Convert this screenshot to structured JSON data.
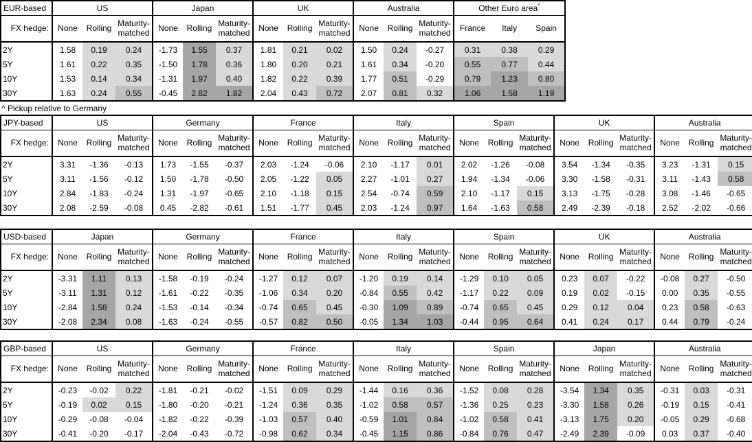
{
  "page": {
    "footnote": "^ Pickup relative to Germany"
  },
  "fx_hedge_label": "FX hedge:",
  "maturities": [
    "2Y",
    "5Y",
    "10Y",
    "30Y"
  ],
  "default_subheaders": [
    "None",
    "Rolling",
    "Maturity-matched"
  ],
  "shading": {
    "light": "#d9d9d9",
    "medium": "#bfbfbf",
    "dark": "#a6a6a6",
    "medium_threshold": 0.5,
    "dark_threshold": 1.0
  },
  "tables": [
    {
      "base": "EUR-based",
      "groups": [
        {
          "name": "US",
          "rows": [
            [
              "1.58",
              "0.19",
              "0.24"
            ],
            [
              "1.61",
              "0.22",
              "0.35"
            ],
            [
              "1.53",
              "0.14",
              "0.34"
            ],
            [
              "1.63",
              "0.24",
              "0.55"
            ]
          ]
        },
        {
          "name": "Japan",
          "rows": [
            [
              "-1.73",
              "1.55",
              "0.37"
            ],
            [
              "-1.50",
              "1.78",
              "0.36"
            ],
            [
              "-1.31",
              "1.97",
              "0.40"
            ],
            [
              "-0.45",
              "2.82",
              "1.82"
            ]
          ]
        },
        {
          "name": "UK",
          "rows": [
            [
              "1.81",
              "0.21",
              "0.02"
            ],
            [
              "1.80",
              "0.20",
              "0.21"
            ],
            [
              "1.82",
              "0.22",
              "0.39"
            ],
            [
              "2.04",
              "0.43",
              "0.72"
            ]
          ]
        },
        {
          "name": "Australia",
          "rows": [
            [
              "1.50",
              "0.24",
              "-0.27"
            ],
            [
              "1.61",
              "0.34",
              "-0.20"
            ],
            [
              "1.77",
              "0.51",
              "-0.29"
            ],
            [
              "2.07",
              "0.81",
              "0.32"
            ]
          ]
        },
        {
          "name": "Other Euro area",
          "sup": "^",
          "shade_all": true,
          "subheaders": [
            "France",
            "Italy",
            "Spain"
          ],
          "rows": [
            [
              "0.31",
              "0.38",
              "0.29"
            ],
            [
              "0.55",
              "0.77",
              "0.44"
            ],
            [
              "0.79",
              "1.23",
              "0.80"
            ],
            [
              "1.06",
              "1.58",
              "1.19"
            ]
          ]
        }
      ]
    },
    {
      "base": "JPY-based",
      "groups": [
        {
          "name": "US",
          "rows": [
            [
              "3.31",
              "-1.36",
              "-0.13"
            ],
            [
              "3.11",
              "-1.56",
              "-0.12"
            ],
            [
              "2.84",
              "-1.83",
              "-0.24"
            ],
            [
              "2.08",
              "-2.59",
              "-0.08"
            ]
          ]
        },
        {
          "name": "Germany",
          "rows": [
            [
              "1.73",
              "-1.55",
              "-0.37"
            ],
            [
              "1.50",
              "-1.78",
              "-0.50"
            ],
            [
              "1.31",
              "-1.97",
              "-0.65"
            ],
            [
              "0.45",
              "-2.82",
              "-0.61"
            ]
          ]
        },
        {
          "name": "France",
          "rows": [
            [
              "2.03",
              "-1.24",
              "-0.06"
            ],
            [
              "2.05",
              "-1.22",
              "0.05"
            ],
            [
              "2.10",
              "-1.18",
              "0.15"
            ],
            [
              "1.51",
              "-1.77",
              "0.45"
            ]
          ]
        },
        {
          "name": "Italy",
          "rows": [
            [
              "2.10",
              "-1.17",
              "0.01"
            ],
            [
              "2.27",
              "-1.01",
              "0.27"
            ],
            [
              "2.54",
              "-0.74",
              "0.59"
            ],
            [
              "2.03",
              "-1.24",
              "0.97"
            ]
          ]
        },
        {
          "name": "Spain",
          "rows": [
            [
              "2.02",
              "-1.26",
              "-0.08"
            ],
            [
              "1.94",
              "-1.34",
              "-0.06"
            ],
            [
              "2.10",
              "-1.17",
              "0.15"
            ],
            [
              "1.64",
              "-1.63",
              "0.58"
            ]
          ]
        },
        {
          "name": "UK",
          "rows": [
            [
              "3.54",
              "-1.34",
              "-0.35"
            ],
            [
              "3.30",
              "-1.58",
              "-0.31"
            ],
            [
              "3.13",
              "-1.75",
              "-0.28"
            ],
            [
              "2.49",
              "-2.39",
              "-0.18"
            ]
          ]
        },
        {
          "name": "Australia",
          "rows": [
            [
              "3.23",
              "-1.31",
              "0.15"
            ],
            [
              "3.11",
              "-1.43",
              "0.58"
            ],
            [
              "3.08",
              "-1.46",
              "-0.65"
            ],
            [
              "2.52",
              "-2.02",
              "-0.66"
            ]
          ]
        }
      ]
    },
    {
      "base": "USD-based",
      "groups": [
        {
          "name": "Japan",
          "rows": [
            [
              "-3.31",
              "1.11",
              "0.13"
            ],
            [
              "-3.11",
              "1.31",
              "0.12"
            ],
            [
              "-2.84",
              "1.58",
              "0.24"
            ],
            [
              "-2.08",
              "2.34",
              "0.08"
            ]
          ]
        },
        {
          "name": "Germany",
          "rows": [
            [
              "-1.58",
              "-0.19",
              "-0.24"
            ],
            [
              "-1.61",
              "-0.22",
              "-0.35"
            ],
            [
              "-1.53",
              "-0.14",
              "-0.34"
            ],
            [
              "-1.63",
              "-0.24",
              "-0.55"
            ]
          ]
        },
        {
          "name": "France",
          "rows": [
            [
              "-1.27",
              "0.12",
              "0.07"
            ],
            [
              "-1.06",
              "0.34",
              "0.20"
            ],
            [
              "-0.74",
              "0.65",
              "0.45"
            ],
            [
              "-0.57",
              "0.82",
              "0.50"
            ]
          ]
        },
        {
          "name": "Italy",
          "rows": [
            [
              "-1.20",
              "0.19",
              "0.14"
            ],
            [
              "-0.84",
              "0.55",
              "0.42"
            ],
            [
              "-0.30",
              "1.09",
              "0.89"
            ],
            [
              "-0.05",
              "1.34",
              "1.03"
            ]
          ]
        },
        {
          "name": "Spain",
          "rows": [
            [
              "-1.29",
              "0.10",
              "0.05"
            ],
            [
              "-1.17",
              "0.22",
              "0.09"
            ],
            [
              "-0.74",
              "0.65",
              "0.45"
            ],
            [
              "-0.44",
              "0.95",
              "0.64"
            ]
          ]
        },
        {
          "name": "UK",
          "rows": [
            [
              "0.23",
              "0.07",
              "-0.22"
            ],
            [
              "0.19",
              "0.02",
              "-0.15"
            ],
            [
              "0.29",
              "0.12",
              "0.04"
            ],
            [
              "0.41",
              "0.24",
              "0.17"
            ]
          ]
        },
        {
          "name": "Australia",
          "rows": [
            [
              "-0.08",
              "0.27",
              "-0.50"
            ],
            [
              "0.00",
              "0.35",
              "-0.55"
            ],
            [
              "0.23",
              "0.58",
              "-0.63"
            ],
            [
              "0.44",
              "0.79",
              "-0.24"
            ]
          ]
        }
      ]
    },
    {
      "base": "GBP-based",
      "groups": [
        {
          "name": "US",
          "rows": [
            [
              "-0.23",
              "-0.02",
              "0.22"
            ],
            [
              "-0.19",
              "0.02",
              "0.15"
            ],
            [
              "-0.29",
              "-0.08",
              "-0.04"
            ],
            [
              "-0.41",
              "-0.20",
              "-0.17"
            ]
          ]
        },
        {
          "name": "Germany",
          "rows": [
            [
              "-1.81",
              "-0.21",
              "-0.02"
            ],
            [
              "-1.80",
              "-0.20",
              "-0.21"
            ],
            [
              "-1.82",
              "-0.22",
              "-0.39"
            ],
            [
              "-2.04",
              "-0.43",
              "-0.72"
            ]
          ]
        },
        {
          "name": "France",
          "rows": [
            [
              "-1.51",
              "0.09",
              "0.29"
            ],
            [
              "-1.24",
              "0.36",
              "0.35"
            ],
            [
              "-1.03",
              "0.57",
              "0.40"
            ],
            [
              "-0.98",
              "0.62",
              "0.34"
            ]
          ]
        },
        {
          "name": "Italy",
          "rows": [
            [
              "-1.44",
              "0.16",
              "0.36"
            ],
            [
              "-1.02",
              "0.58",
              "0.57"
            ],
            [
              "-0.59",
              "1.01",
              "0.84"
            ],
            [
              "-0.45",
              "1.15",
              "0.86"
            ]
          ]
        },
        {
          "name": "Spain",
          "rows": [
            [
              "-1.52",
              "0.08",
              "0.28"
            ],
            [
              "-1.36",
              "0.25",
              "0.23"
            ],
            [
              "-1.02",
              "0.58",
              "0.41"
            ],
            [
              "-0.84",
              "0.76",
              "0.47"
            ]
          ]
        },
        {
          "name": "Japan",
          "rows": [
            [
              "-3.54",
              "1.34",
              "0.35"
            ],
            [
              "-3.30",
              "1.58",
              "0.26"
            ],
            [
              "-3.13",
              "1.75",
              "0.20"
            ],
            [
              "-2.49",
              "2.39",
              "-0.09"
            ]
          ]
        },
        {
          "name": "Australia",
          "rows": [
            [
              "-0.31",
              "0.03",
              "-0.31"
            ],
            [
              "-0.19",
              "0.15",
              "-0.41"
            ],
            [
              "-0.05",
              "0.29",
              "-0.68"
            ],
            [
              "0.03",
              "0.37",
              "-0.40"
            ]
          ]
        }
      ]
    }
  ]
}
